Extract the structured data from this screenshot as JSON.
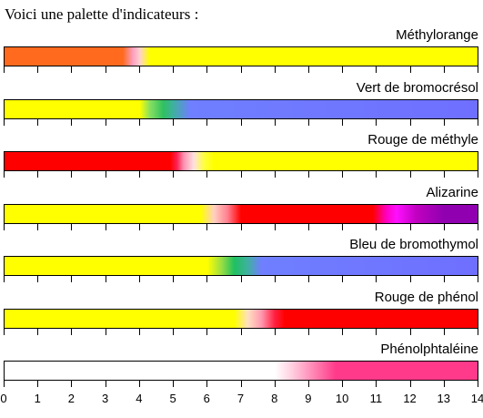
{
  "heading": "Voici une palette d'indicateurs :",
  "indicators": [
    {
      "name": "Méthylorange",
      "stops": [
        [
          "#ff6a1e",
          0
        ],
        [
          "#ff6a1e",
          3.5
        ],
        [
          "#ff9fbf",
          3.8
        ],
        [
          "#ffd0d0",
          4.0
        ],
        [
          "#ffff00",
          4.3
        ],
        [
          "#ffff00",
          14
        ]
      ]
    },
    {
      "name": "Vert de bromocrésol",
      "stops": [
        [
          "#ffff00",
          0
        ],
        [
          "#ffff00",
          4.0
        ],
        [
          "#88e060",
          4.3
        ],
        [
          "#30c060",
          4.7
        ],
        [
          "#3fb0a0",
          5.0
        ],
        [
          "#6f7fff",
          5.5
        ],
        [
          "#6f6fff",
          14
        ]
      ]
    },
    {
      "name": "Rouge de méthyle",
      "stops": [
        [
          "#ff0000",
          0
        ],
        [
          "#ff0000",
          4.9
        ],
        [
          "#ff2050",
          5.1
        ],
        [
          "#ff90b0",
          5.3
        ],
        [
          "#ffe0e0",
          5.6
        ],
        [
          "#ffff40",
          5.9
        ],
        [
          "#ffff00",
          6.2
        ],
        [
          "#ffff00",
          14
        ]
      ]
    },
    {
      "name": "Alizarine",
      "stops": [
        [
          "#ffff00",
          0
        ],
        [
          "#ffff00",
          5.8
        ],
        [
          "#ffd0c0",
          6.2
        ],
        [
          "#ff8090",
          6.6
        ],
        [
          "#ff0000",
          7.0
        ],
        [
          "#ff0000",
          10.9
        ],
        [
          "#ff00c0",
          11.3
        ],
        [
          "#ff10ff",
          11.6
        ],
        [
          "#c000c0",
          12.2
        ],
        [
          "#9000b0",
          13.0
        ],
        [
          "#9000b0",
          14
        ]
      ]
    },
    {
      "name": "Bleu de bromothymol",
      "stops": [
        [
          "#ffff00",
          0
        ],
        [
          "#ffff00",
          6.0
        ],
        [
          "#a0e040",
          6.4
        ],
        [
          "#20c060",
          6.8
        ],
        [
          "#3fb0a0",
          7.2
        ],
        [
          "#6f7fff",
          7.6
        ],
        [
          "#6f6fff",
          14
        ]
      ]
    },
    {
      "name": "Rouge de phénol",
      "stops": [
        [
          "#ffff00",
          0
        ],
        [
          "#ffff00",
          6.8
        ],
        [
          "#ffe0c0",
          7.2
        ],
        [
          "#ff9ab0",
          7.6
        ],
        [
          "#ff2040",
          8.0
        ],
        [
          "#ff0000",
          8.3
        ],
        [
          "#ff0000",
          14
        ]
      ]
    },
    {
      "name": "Phénolphtaléine",
      "stops": [
        [
          "#ffffff",
          0
        ],
        [
          "#ffffff",
          8.0
        ],
        [
          "#ffd0e0",
          8.5
        ],
        [
          "#ff80b0",
          9.2
        ],
        [
          "#ff3a8a",
          9.8
        ],
        [
          "#ff3a8a",
          14
        ]
      ]
    }
  ],
  "scale": {
    "min": 0,
    "max": 14,
    "ticks": [
      "0",
      "1",
      "2",
      "3",
      "4",
      "5",
      "6",
      "7",
      "8",
      "9",
      "10",
      "11",
      "12",
      "13",
      "14"
    ]
  }
}
